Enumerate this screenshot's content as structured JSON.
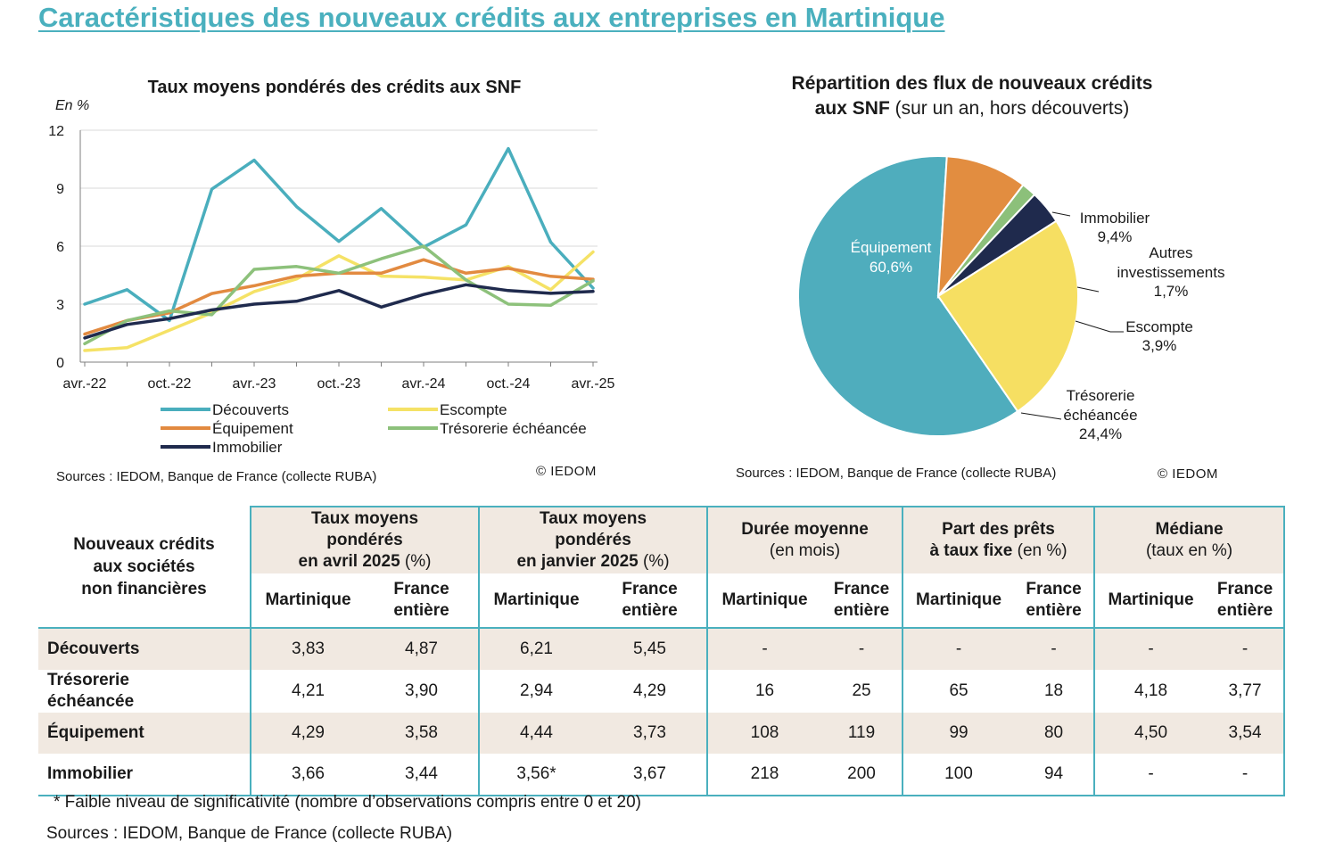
{
  "page": {
    "title": "Caractéristiques des nouveaux crédits aux entreprises en Martinique"
  },
  "left_panel": {
    "sources": "Sources : IEDOM, Banque de France (collecte RUBA)",
    "copyright": "© IEDOM"
  },
  "right_panel": {
    "sources": "Sources :  IEDOM, Banque de France (collecte RUBA)",
    "copyright": "© IEDOM"
  },
  "chart_data": [
    {
      "type": "line",
      "title": "Taux moyens pondérés des crédits aux SNF",
      "ylabel": "En %",
      "xlabel": "",
      "ylim": [
        0,
        12
      ],
      "yticks": [
        0,
        3,
        6,
        9,
        12
      ],
      "grid": true,
      "legend_position": "bottom",
      "x_tick_labels": [
        "avr.-22",
        "oct.-22",
        "avr.-23",
        "oct.-23",
        "avr.-24",
        "oct.-24",
        "avr.-25"
      ],
      "x": [
        "avr.-22",
        "juil.-22",
        "oct.-22",
        "janv.-23",
        "avr.-23",
        "juil.-23",
        "oct.-23",
        "janv.-24",
        "avr.-24",
        "juil.-24",
        "oct.-24",
        "janv.-25",
        "avr.-25"
      ],
      "series": [
        {
          "name": "Découverts",
          "color": "#4aaebd",
          "values": [
            3.0,
            3.75,
            2.15,
            8.95,
            10.45,
            8.05,
            6.25,
            7.95,
            5.95,
            7.1,
            11.05,
            6.21,
            3.83
          ]
        },
        {
          "name": "Escompte",
          "color": "#f5e266",
          "values": [
            0.6,
            0.75,
            1.65,
            2.55,
            3.65,
            4.3,
            5.5,
            4.45,
            4.4,
            4.25,
            4.95,
            3.75,
            5.7
          ]
        },
        {
          "name": "Équipement",
          "color": "#e28a40",
          "values": [
            1.45,
            2.15,
            2.55,
            3.55,
            3.95,
            4.45,
            4.6,
            4.6,
            5.3,
            4.6,
            4.85,
            4.44,
            4.29
          ]
        },
        {
          "name": "Trésorerie échéancée",
          "color": "#8dc17b",
          "values": [
            0.95,
            2.15,
            2.65,
            2.45,
            4.8,
            4.95,
            4.6,
            5.35,
            6.0,
            4.25,
            3.0,
            2.94,
            4.21
          ]
        },
        {
          "name": "Immobilier",
          "color": "#1f2a4d",
          "values": [
            1.25,
            1.95,
            2.25,
            2.7,
            3.0,
            3.15,
            3.7,
            2.85,
            3.5,
            4.0,
            3.7,
            3.56,
            3.66
          ]
        }
      ]
    },
    {
      "type": "pie",
      "title": "Répartition des flux de nouveaux crédits aux SNF",
      "title_bold_line1": "Répartition des flux de nouveaux crédits",
      "title_bold_line2": "aux SNF",
      "title_note": " (sur un an, hors découverts)",
      "slices": [
        {
          "label": "Équipement",
          "value": 60.6,
          "display": "60,6%",
          "color": "#4fadbd"
        },
        {
          "label": "Immobilier",
          "value": 9.4,
          "display": "9,4%",
          "color": "#e28d40"
        },
        {
          "label": "Autres investissements",
          "label_line1": "Autres",
          "label_line2": "investissements",
          "value": 1.7,
          "display": "1,7%",
          "color": "#8cc07a"
        },
        {
          "label": "Escompte",
          "value": 3.9,
          "display": "3,9%",
          "color": "#1f2a4d"
        },
        {
          "label": "Trésorerie échéancée",
          "label_line1": "Trésorerie",
          "label_line2": "échéancée",
          "value": 24.4,
          "display": "24,4%",
          "color": "#f6df62"
        }
      ]
    }
  ],
  "table": {
    "corner": [
      "Nouveaux crédits",
      "aux sociétés",
      "non financières"
    ],
    "groups": [
      {
        "line1": "Taux moyens",
        "line2": "pondérés",
        "line3_bold": "en avril 2025",
        "line3_normal": " (%)"
      },
      {
        "line1": "Taux moyens",
        "line2": "pondérés",
        "line3_bold": "en janvier 2025",
        "line3_normal": " (%)"
      },
      {
        "line1_bold": "Durée moyenne",
        "line2_normal": "(en mois)"
      },
      {
        "line1_bold": "Part des prêts",
        "line2_bold": "à taux fixe",
        "line2_normal": " (en %)"
      },
      {
        "line1_bold": "Médiane",
        "line2_normal": "(taux en %)"
      }
    ],
    "sub_mart": "Martinique",
    "sub_fr1": "France",
    "sub_fr2": "entière",
    "rows": [
      {
        "label1": "Découverts",
        "label2": "",
        "values": [
          "3,83",
          "4,87",
          "6,21",
          "5,45",
          "-",
          "-",
          "-",
          "-",
          "-",
          "-"
        ]
      },
      {
        "label1": "Trésorerie",
        "label2": "échéancée",
        "values": [
          "4,21",
          "3,90",
          "2,94",
          "4,29",
          "16",
          "25",
          "65",
          "18",
          "4,18",
          "3,77"
        ]
      },
      {
        "label1": "Équipement",
        "label2": "",
        "values": [
          "4,29",
          "3,58",
          "4,44",
          "3,73",
          "108",
          "119",
          "99",
          "80",
          "4,50",
          "3,54"
        ]
      },
      {
        "label1": "Immobilier",
        "label2": "",
        "values": [
          "3,66",
          "3,44",
          "3,56*",
          "3,67",
          "218",
          "200",
          "100",
          "94",
          "-",
          "-"
        ]
      }
    ],
    "footnote": "* Faible niveau de significativité (nombre d’observations compris entre 0 et 20)",
    "sources": "Sources : IEDOM, Banque de France (collecte RUBA)"
  }
}
